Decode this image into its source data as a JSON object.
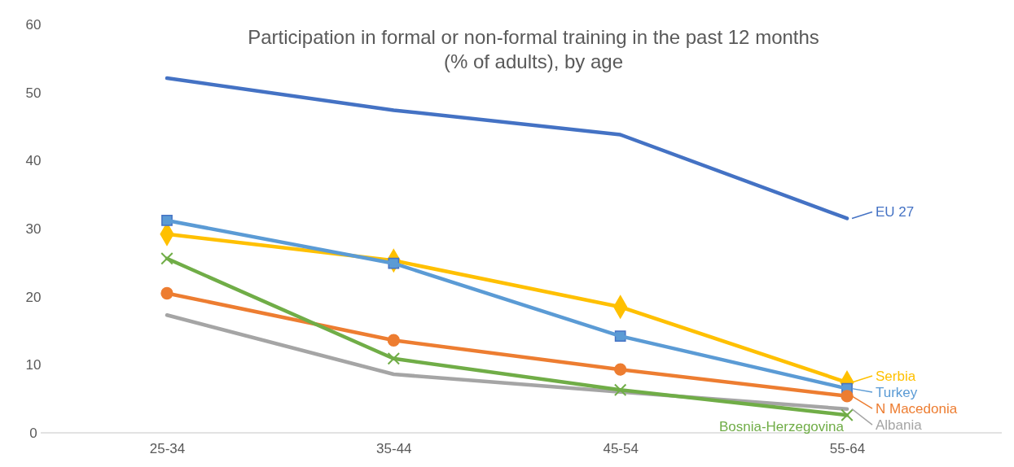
{
  "chart_data": {
    "type": "line",
    "title": "Participation in formal or non-formal training in the past 12 months\n(% of adults), by age",
    "categories": [
      "25-34",
      "35-44",
      "45-54",
      "55-64"
    ],
    "ylim": [
      0,
      60
    ],
    "yticks": [
      0,
      10,
      20,
      30,
      40,
      50,
      60
    ],
    "grid": false,
    "legend": "right",
    "series": [
      {
        "name": "EU 27",
        "color": "#4472c4",
        "marker": "none",
        "values": [
          52.1,
          47.4,
          43.8,
          31.5
        ]
      },
      {
        "name": "Serbia",
        "color": "#ffc000",
        "marker": "diamond",
        "values": [
          29.2,
          25.3,
          18.5,
          7.4
        ]
      },
      {
        "name": "Turkey",
        "color": "#5b9bd5",
        "marker": "square",
        "values": [
          31.2,
          24.9,
          14.2,
          6.5
        ]
      },
      {
        "name": "N Macedonia",
        "color": "#ed7d31",
        "marker": "circle",
        "values": [
          20.5,
          13.6,
          9.3,
          5.4
        ]
      },
      {
        "name": "Albania",
        "color": "#a5a5a5",
        "marker": "none",
        "values": [
          17.3,
          8.6,
          6.0,
          3.5
        ]
      },
      {
        "name": "Bosnia-Herzegovina",
        "color": "#70ad47",
        "marker": "cross",
        "values": [
          25.6,
          10.9,
          6.3,
          2.6
        ]
      }
    ]
  }
}
